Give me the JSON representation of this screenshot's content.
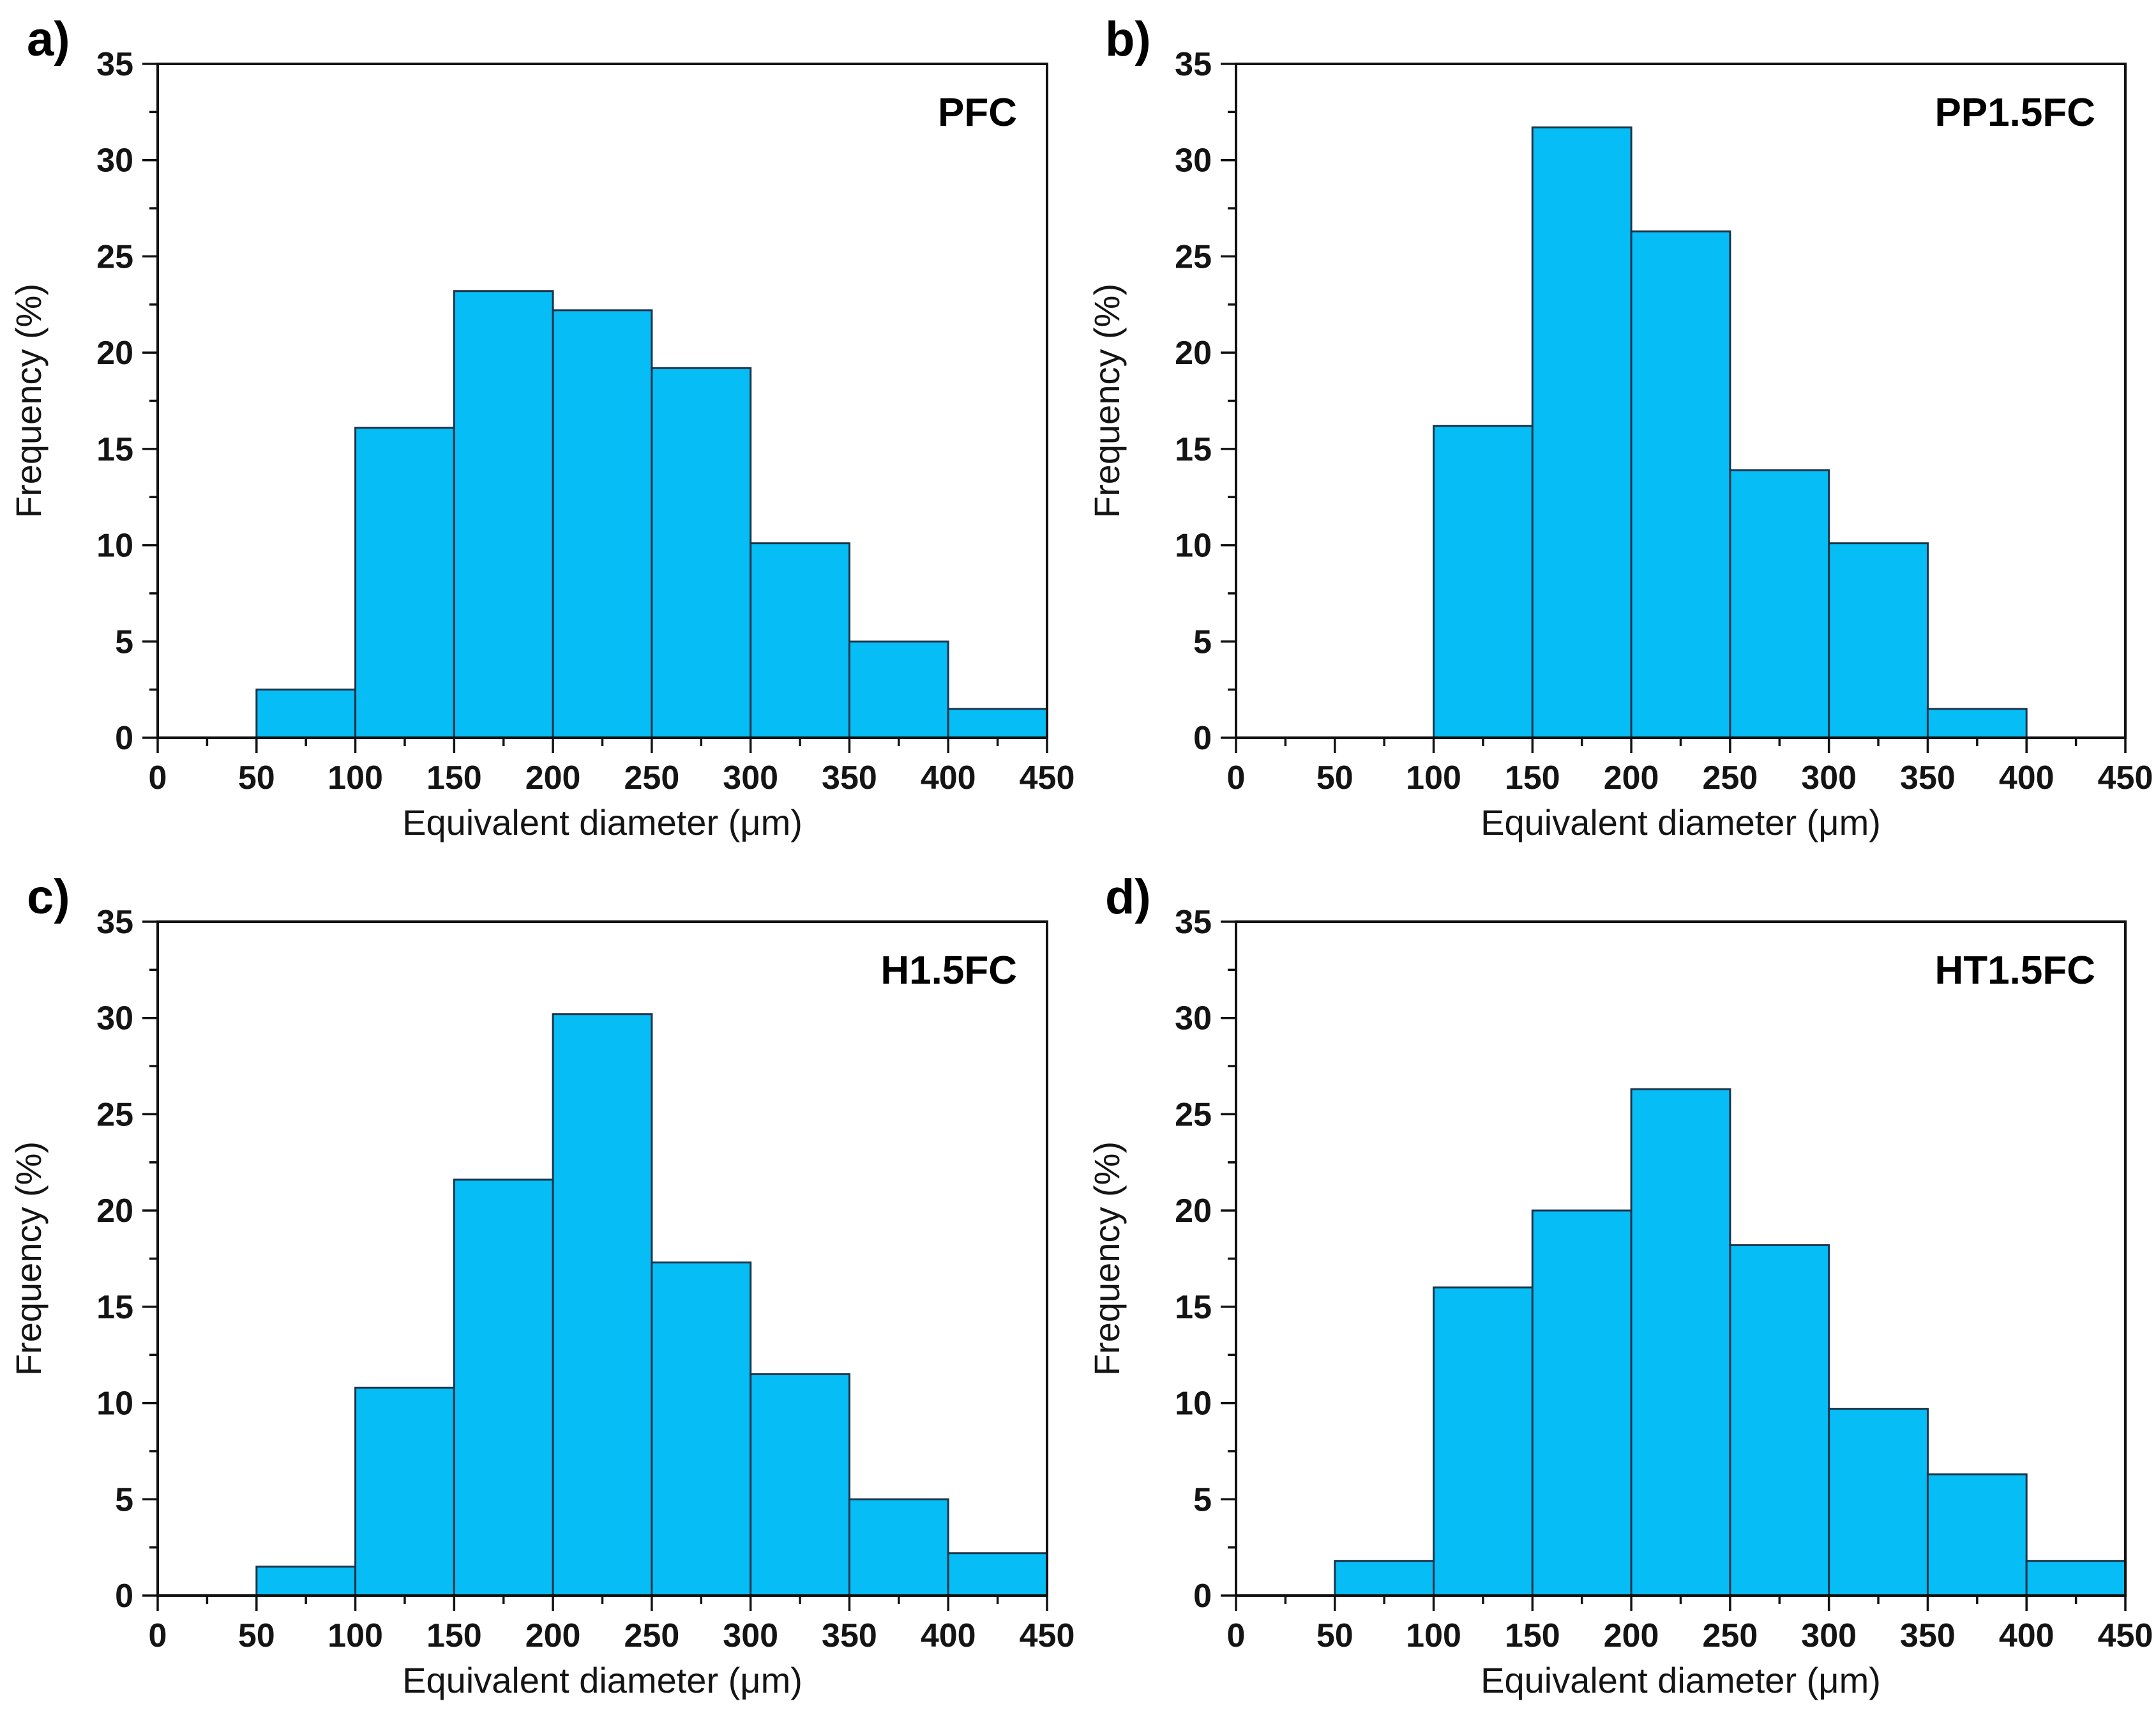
{
  "figure": {
    "background": "#ffffff",
    "colors": {
      "bar_fill": "#06bdf5",
      "bar_stroke": "#1d3349",
      "axis_color": "#111111",
      "text_color": "#141414"
    }
  },
  "chart_data": [
    {
      "type": "bar",
      "subtype": "histogram",
      "panel_label": "a)",
      "series": "PFC",
      "xlabel": "Equivalent diameter (μm)",
      "ylabel": "Frequency (%)",
      "bin_edges": [
        50,
        100,
        150,
        200,
        250,
        300,
        350,
        400,
        450
      ],
      "values": [
        2.5,
        16.1,
        23.2,
        22.2,
        19.2,
        10.1,
        5.0,
        1.5
      ],
      "xlim": [
        0,
        450
      ],
      "ylim": [
        0,
        35
      ],
      "xtick_major": 50,
      "xtick_minor": 25,
      "ytick_major": 5,
      "ytick_minor": 2.5,
      "grid": false,
      "legend_position": "none"
    },
    {
      "type": "bar",
      "subtype": "histogram",
      "panel_label": "b)",
      "series": "PP1.5FC",
      "xlabel": "Equivalent diameter (μm)",
      "ylabel": "Frequency (%)",
      "bin_edges": [
        50,
        100,
        150,
        200,
        250,
        300,
        350,
        400,
        450
      ],
      "values": [
        0,
        16.2,
        31.7,
        26.3,
        13.9,
        10.1,
        1.5,
        0
      ],
      "xlim": [
        0,
        450
      ],
      "ylim": [
        0,
        35
      ],
      "xtick_major": 50,
      "xtick_minor": 25,
      "ytick_major": 5,
      "ytick_minor": 2.5,
      "grid": false,
      "legend_position": "none"
    },
    {
      "type": "bar",
      "subtype": "histogram",
      "panel_label": "c)",
      "series": "H1.5FC",
      "xlabel": "Equivalent diameter (μm)",
      "ylabel": "Frequency (%)",
      "bin_edges": [
        50,
        100,
        150,
        200,
        250,
        300,
        350,
        400,
        450
      ],
      "values": [
        1.5,
        10.8,
        21.6,
        30.2,
        17.3,
        11.5,
        5.0,
        2.2
      ],
      "xlim": [
        0,
        450
      ],
      "ylim": [
        0,
        35
      ],
      "xtick_major": 50,
      "xtick_minor": 25,
      "ytick_major": 5,
      "ytick_minor": 2.5,
      "grid": false,
      "legend_position": "none"
    },
    {
      "type": "bar",
      "subtype": "histogram",
      "panel_label": "d)",
      "series": "HT1.5FC",
      "xlabel": "Equivalent diameter (μm)",
      "ylabel": "Frequency (%)",
      "bin_edges": [
        50,
        100,
        150,
        200,
        250,
        300,
        350,
        400,
        450
      ],
      "values": [
        1.8,
        16.0,
        20.0,
        26.3,
        18.2,
        9.7,
        6.3,
        1.8
      ],
      "xlim": [
        0,
        450
      ],
      "ylim": [
        0,
        35
      ],
      "xtick_major": 50,
      "xtick_minor": 25,
      "ytick_major": 5,
      "ytick_minor": 2.5,
      "grid": false,
      "legend_position": "none"
    }
  ]
}
